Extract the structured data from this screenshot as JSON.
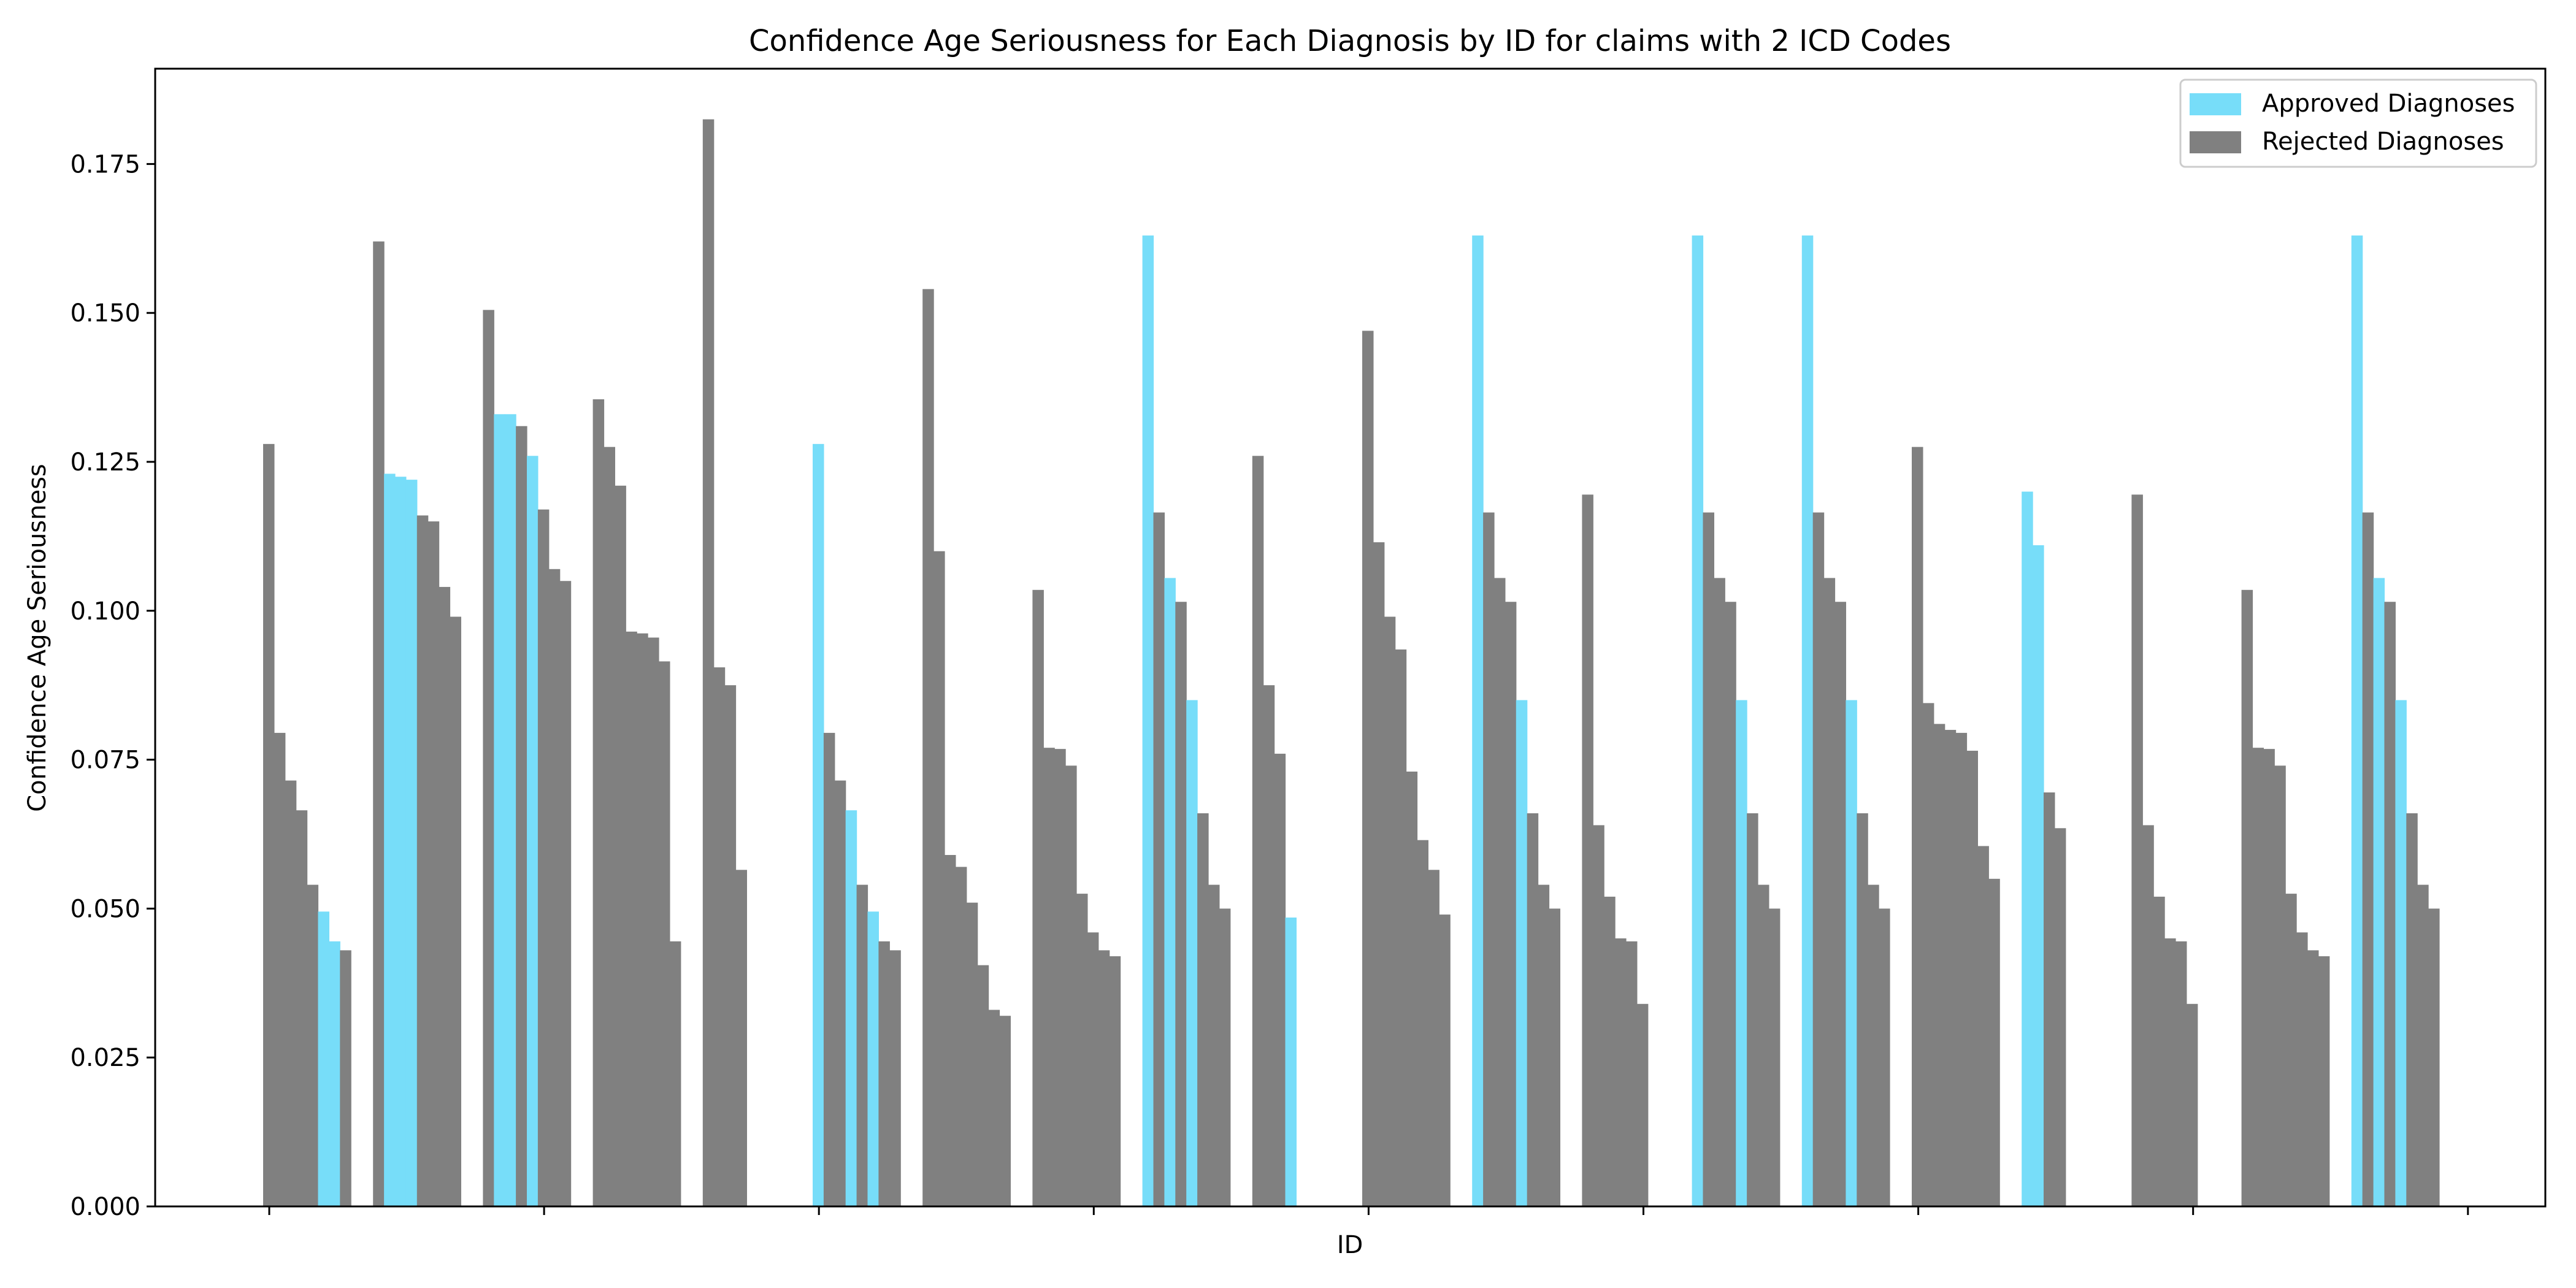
{
  "chart_data": {
    "type": "bar",
    "title": "Confidence Age Seriousness for Each Diagnosis by ID for claims with 2 ICD Codes",
    "xlabel": "ID",
    "ylabel": "Confidence Age Seriousness",
    "ylim": [
      0,
      0.191
    ],
    "y_ticks": [
      "0.000",
      "0.025",
      "0.050",
      "0.075",
      "0.100",
      "0.125",
      "0.150",
      "0.175"
    ],
    "x_tick_count": 9,
    "x_tick_labels": [],
    "grid": false,
    "legend": {
      "placement": "top-right",
      "entries": [
        {
          "label": "Approved Diagnoses",
          "color": "#77ddf9"
        },
        {
          "label": "Rejected Diagnoses",
          "color": "#808080"
        }
      ]
    },
    "colors": {
      "approved": "#77ddf9",
      "rejected": "#808080"
    },
    "groups": [
      {
        "bars": [
          {
            "value": 0.128,
            "status": "rejected"
          },
          {
            "value": 0.0795,
            "status": "rejected"
          },
          {
            "value": 0.0715,
            "status": "rejected"
          },
          {
            "value": 0.0665,
            "status": "rejected"
          },
          {
            "value": 0.054,
            "status": "rejected"
          },
          {
            "value": 0.0495,
            "status": "approved"
          },
          {
            "value": 0.0445,
            "status": "approved"
          },
          {
            "value": 0.043,
            "status": "rejected"
          }
        ]
      },
      {
        "bars": [
          {
            "value": 0.162,
            "status": "rejected"
          },
          {
            "value": 0.123,
            "status": "approved"
          },
          {
            "value": 0.1225,
            "status": "approved"
          },
          {
            "value": 0.122,
            "status": "approved"
          },
          {
            "value": 0.116,
            "status": "rejected"
          },
          {
            "value": 0.115,
            "status": "rejected"
          },
          {
            "value": 0.104,
            "status": "rejected"
          },
          {
            "value": 0.099,
            "status": "rejected"
          }
        ]
      },
      {
        "bars": [
          {
            "value": 0.1505,
            "status": "rejected"
          },
          {
            "value": 0.133,
            "status": "approved"
          },
          {
            "value": 0.133,
            "status": "approved"
          },
          {
            "value": 0.131,
            "status": "rejected"
          },
          {
            "value": 0.126,
            "status": "approved"
          },
          {
            "value": 0.117,
            "status": "rejected"
          },
          {
            "value": 0.107,
            "status": "rejected"
          },
          {
            "value": 0.105,
            "status": "rejected"
          }
        ]
      },
      {
        "bars": [
          {
            "value": 0.1355,
            "status": "rejected"
          },
          {
            "value": 0.1275,
            "status": "rejected"
          },
          {
            "value": 0.121,
            "status": "rejected"
          },
          {
            "value": 0.0965,
            "status": "rejected"
          },
          {
            "value": 0.0962,
            "status": "rejected"
          },
          {
            "value": 0.0955,
            "status": "rejected"
          },
          {
            "value": 0.0915,
            "status": "rejected"
          },
          {
            "value": 0.0445,
            "status": "rejected"
          }
        ]
      },
      {
        "bars": [
          {
            "value": 0.1825,
            "status": "rejected"
          },
          {
            "value": 0.0905,
            "status": "rejected"
          },
          {
            "value": 0.0875,
            "status": "rejected"
          },
          {
            "value": 0.0565,
            "status": "rejected"
          }
        ]
      },
      {
        "bars": [
          {
            "value": 0.128,
            "status": "approved"
          },
          {
            "value": 0.0795,
            "status": "rejected"
          },
          {
            "value": 0.0715,
            "status": "rejected"
          },
          {
            "value": 0.0665,
            "status": "approved"
          },
          {
            "value": 0.054,
            "status": "rejected"
          },
          {
            "value": 0.0495,
            "status": "approved"
          },
          {
            "value": 0.0445,
            "status": "rejected"
          },
          {
            "value": 0.043,
            "status": "rejected"
          }
        ]
      },
      {
        "bars": [
          {
            "value": 0.154,
            "status": "rejected"
          },
          {
            "value": 0.11,
            "status": "rejected"
          },
          {
            "value": 0.059,
            "status": "rejected"
          },
          {
            "value": 0.057,
            "status": "rejected"
          },
          {
            "value": 0.051,
            "status": "rejected"
          },
          {
            "value": 0.0405,
            "status": "rejected"
          },
          {
            "value": 0.033,
            "status": "rejected"
          },
          {
            "value": 0.032,
            "status": "rejected"
          }
        ]
      },
      {
        "bars": [
          {
            "value": 0.1035,
            "status": "rejected"
          },
          {
            "value": 0.077,
            "status": "rejected"
          },
          {
            "value": 0.0768,
            "status": "rejected"
          },
          {
            "value": 0.074,
            "status": "rejected"
          },
          {
            "value": 0.0525,
            "status": "rejected"
          },
          {
            "value": 0.046,
            "status": "rejected"
          },
          {
            "value": 0.043,
            "status": "rejected"
          },
          {
            "value": 0.042,
            "status": "rejected"
          }
        ]
      },
      {
        "bars": [
          {
            "value": 0.163,
            "status": "approved"
          },
          {
            "value": 0.1165,
            "status": "rejected"
          },
          {
            "value": 0.1055,
            "status": "approved"
          },
          {
            "value": 0.1015,
            "status": "rejected"
          },
          {
            "value": 0.085,
            "status": "approved"
          },
          {
            "value": 0.066,
            "status": "rejected"
          },
          {
            "value": 0.054,
            "status": "rejected"
          },
          {
            "value": 0.05,
            "status": "rejected"
          }
        ]
      },
      {
        "bars": [
          {
            "value": 0.126,
            "status": "rejected"
          },
          {
            "value": 0.0875,
            "status": "rejected"
          },
          {
            "value": 0.076,
            "status": "rejected"
          },
          {
            "value": 0.0485,
            "status": "approved"
          }
        ]
      },
      {
        "bars": [
          {
            "value": 0.147,
            "status": "rejected"
          },
          {
            "value": 0.1115,
            "status": "rejected"
          },
          {
            "value": 0.099,
            "status": "rejected"
          },
          {
            "value": 0.0935,
            "status": "rejected"
          },
          {
            "value": 0.073,
            "status": "rejected"
          },
          {
            "value": 0.0615,
            "status": "rejected"
          },
          {
            "value": 0.0565,
            "status": "rejected"
          },
          {
            "value": 0.049,
            "status": "rejected"
          }
        ]
      },
      {
        "bars": [
          {
            "value": 0.163,
            "status": "approved"
          },
          {
            "value": 0.1165,
            "status": "rejected"
          },
          {
            "value": 0.1055,
            "status": "rejected"
          },
          {
            "value": 0.1015,
            "status": "rejected"
          },
          {
            "value": 0.085,
            "status": "approved"
          },
          {
            "value": 0.066,
            "status": "rejected"
          },
          {
            "value": 0.054,
            "status": "rejected"
          },
          {
            "value": 0.05,
            "status": "rejected"
          }
        ]
      },
      {
        "bars": [
          {
            "value": 0.1195,
            "status": "rejected"
          },
          {
            "value": 0.064,
            "status": "rejected"
          },
          {
            "value": 0.052,
            "status": "rejected"
          },
          {
            "value": 0.045,
            "status": "rejected"
          },
          {
            "value": 0.0445,
            "status": "rejected"
          },
          {
            "value": 0.034,
            "status": "rejected"
          }
        ]
      },
      {
        "bars": [
          {
            "value": 0.163,
            "status": "approved"
          },
          {
            "value": 0.1165,
            "status": "rejected"
          },
          {
            "value": 0.1055,
            "status": "rejected"
          },
          {
            "value": 0.1015,
            "status": "rejected"
          },
          {
            "value": 0.085,
            "status": "approved"
          },
          {
            "value": 0.066,
            "status": "rejected"
          },
          {
            "value": 0.054,
            "status": "rejected"
          },
          {
            "value": 0.05,
            "status": "rejected"
          }
        ]
      },
      {
        "bars": [
          {
            "value": 0.163,
            "status": "approved"
          },
          {
            "value": 0.1165,
            "status": "rejected"
          },
          {
            "value": 0.1055,
            "status": "rejected"
          },
          {
            "value": 0.1015,
            "status": "rejected"
          },
          {
            "value": 0.085,
            "status": "approved"
          },
          {
            "value": 0.066,
            "status": "rejected"
          },
          {
            "value": 0.054,
            "status": "rejected"
          },
          {
            "value": 0.05,
            "status": "rejected"
          }
        ]
      },
      {
        "bars": [
          {
            "value": 0.1275,
            "status": "rejected"
          },
          {
            "value": 0.0845,
            "status": "rejected"
          },
          {
            "value": 0.081,
            "status": "rejected"
          },
          {
            "value": 0.08,
            "status": "rejected"
          },
          {
            "value": 0.0795,
            "status": "rejected"
          },
          {
            "value": 0.0765,
            "status": "rejected"
          },
          {
            "value": 0.0605,
            "status": "rejected"
          },
          {
            "value": 0.055,
            "status": "rejected"
          }
        ]
      },
      {
        "bars": [
          {
            "value": 0.12,
            "status": "approved"
          },
          {
            "value": 0.111,
            "status": "approved"
          },
          {
            "value": 0.0695,
            "status": "rejected"
          },
          {
            "value": 0.0635,
            "status": "rejected"
          }
        ]
      },
      {
        "bars": [
          {
            "value": 0.1195,
            "status": "rejected"
          },
          {
            "value": 0.064,
            "status": "rejected"
          },
          {
            "value": 0.052,
            "status": "rejected"
          },
          {
            "value": 0.045,
            "status": "rejected"
          },
          {
            "value": 0.0445,
            "status": "rejected"
          },
          {
            "value": 0.034,
            "status": "rejected"
          }
        ]
      },
      {
        "bars": [
          {
            "value": 0.1035,
            "status": "rejected"
          },
          {
            "value": 0.077,
            "status": "rejected"
          },
          {
            "value": 0.0768,
            "status": "rejected"
          },
          {
            "value": 0.074,
            "status": "rejected"
          },
          {
            "value": 0.0525,
            "status": "rejected"
          },
          {
            "value": 0.046,
            "status": "rejected"
          },
          {
            "value": 0.043,
            "status": "rejected"
          },
          {
            "value": 0.042,
            "status": "rejected"
          }
        ]
      },
      {
        "bars": [
          {
            "value": 0.163,
            "status": "approved"
          },
          {
            "value": 0.1165,
            "status": "rejected"
          },
          {
            "value": 0.1055,
            "status": "approved"
          },
          {
            "value": 0.1015,
            "status": "rejected"
          },
          {
            "value": 0.085,
            "status": "approved"
          },
          {
            "value": 0.066,
            "status": "rejected"
          },
          {
            "value": 0.054,
            "status": "rejected"
          },
          {
            "value": 0.05,
            "status": "rejected"
          }
        ]
      }
    ]
  }
}
